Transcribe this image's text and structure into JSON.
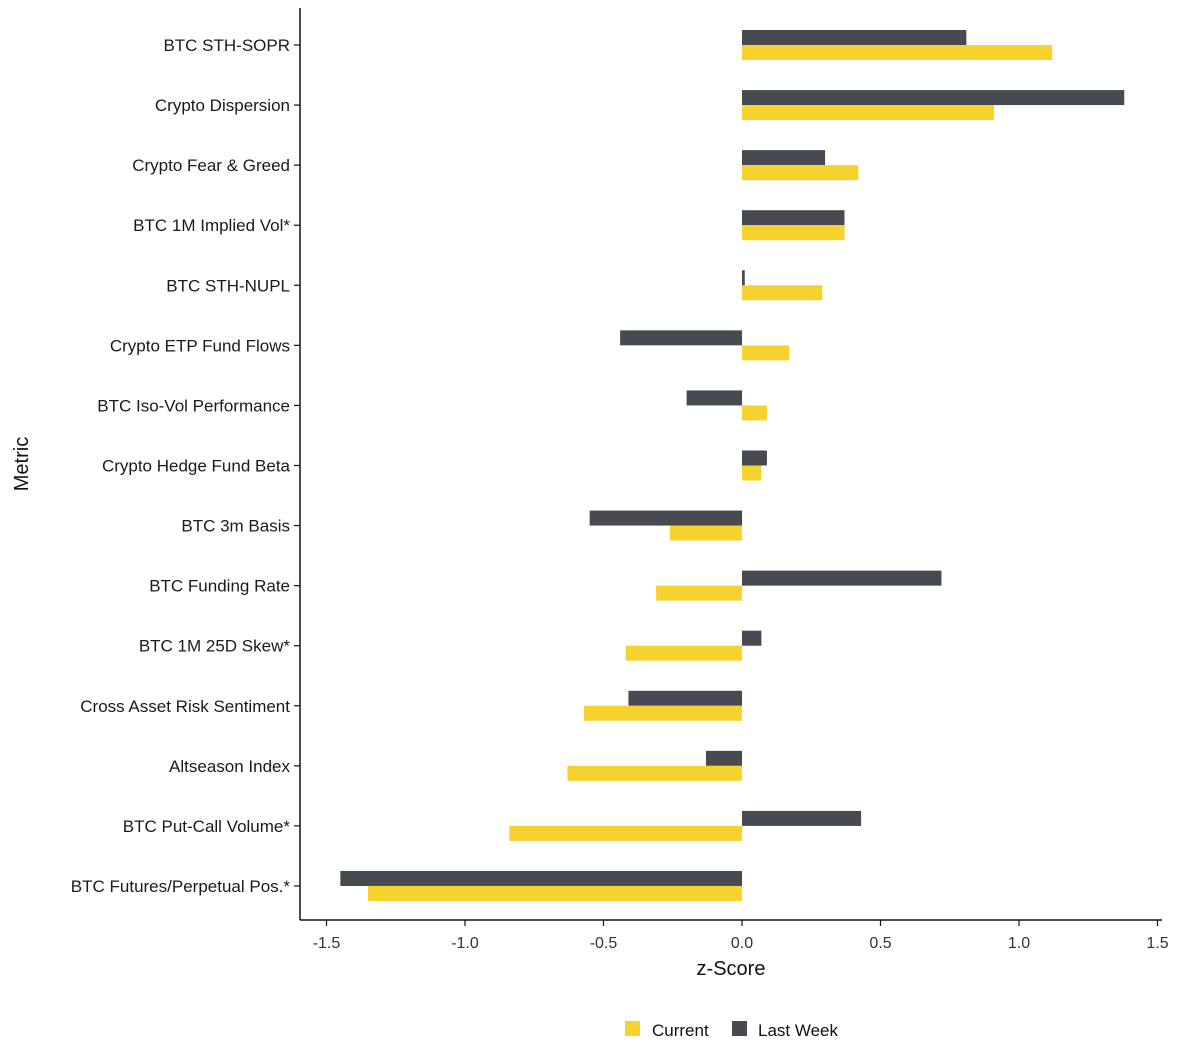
{
  "chart_data": {
    "type": "bar",
    "orientation": "horizontal",
    "xlabel": "z-Score",
    "ylabel": "Metric",
    "xlim": [
      -1.55,
      1.55
    ],
    "xticks": [
      -1.5,
      -1.0,
      -0.5,
      0.0,
      0.5,
      1.0,
      1.5
    ],
    "xtick_labels": [
      "-1.5",
      "-1.0",
      "-0.5",
      "0.0",
      "0.5",
      "1.0",
      "1.5"
    ],
    "grid": false,
    "legend_position": "bottom",
    "categories": [
      "BTC STH-SOPR",
      "Crypto Dispersion",
      "Crypto Fear & Greed",
      "BTC 1M Implied Vol*",
      "BTC STH-NUPL",
      "Crypto ETP Fund Flows",
      "BTC Iso-Vol Performance",
      "Crypto Hedge Fund Beta",
      "BTC 3m Basis",
      "BTC Funding Rate",
      "BTC 1M 25D Skew*",
      "Cross Asset Risk Sentiment",
      "Altseason Index",
      "BTC Put-Call Volume*",
      "BTC Futures/Perpetual Pos.*"
    ],
    "series": [
      {
        "name": "Current",
        "color": "#F6D22E",
        "values": [
          1.12,
          0.91,
          0.42,
          0.37,
          0.29,
          0.17,
          0.09,
          0.07,
          -0.26,
          -0.31,
          -0.42,
          -0.57,
          -0.63,
          -0.84,
          -1.35
        ]
      },
      {
        "name": "Last Week",
        "color": "#474A51",
        "values": [
          0.81,
          1.38,
          0.3,
          0.37,
          0.01,
          -0.44,
          -0.2,
          0.09,
          -0.55,
          0.72,
          0.07,
          -0.41,
          -0.13,
          0.43,
          -1.45
        ]
      }
    ]
  }
}
